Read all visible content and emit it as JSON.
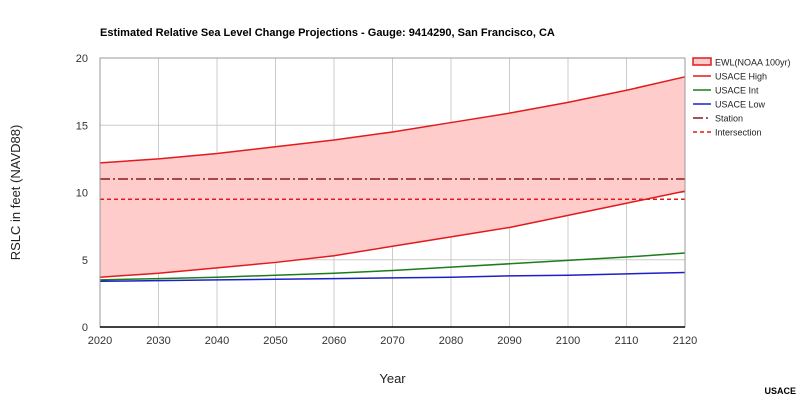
{
  "chart_data": {
    "type": "line",
    "title": "Estimated Relative Sea Level Change Projections - Gauge: 9414290, San Francisco, CA",
    "xlabel": "Year",
    "ylabel": "RSLC in feet (NAVD88)",
    "xlim": [
      2020,
      2120
    ],
    "ylim": [
      0,
      20
    ],
    "x_ticks": [
      "2020",
      "2030",
      "2040",
      "2050",
      "2060",
      "2070",
      "2080",
      "2090",
      "2100",
      "2110",
      "2120"
    ],
    "y_ticks": [
      "0",
      "5",
      "10",
      "15",
      "20"
    ],
    "grid": true,
    "legend_position": "right",
    "x": [
      2020,
      2030,
      2040,
      2050,
      2060,
      2070,
      2080,
      2090,
      2100,
      2110,
      2120
    ],
    "band": {
      "name": "EWL(NOAA 100yr)",
      "color": "#ffcccc",
      "edge_color": "#e31a1c",
      "lower": [
        3.7,
        4.0,
        4.4,
        4.8,
        5.3,
        6.0,
        6.7,
        7.4,
        8.3,
        9.2,
        10.1
      ],
      "upper": [
        12.2,
        12.5,
        12.9,
        13.4,
        13.9,
        14.5,
        15.2,
        15.9,
        16.7,
        17.6,
        18.6
      ]
    },
    "series": [
      {
        "name": "USACE High",
        "color": "#e31a1c",
        "style": "solid",
        "values": [
          3.7,
          4.0,
          4.4,
          4.8,
          5.3,
          6.0,
          6.7,
          7.4,
          8.3,
          9.2,
          10.1
        ]
      },
      {
        "name": "USACE Int",
        "color": "#1b7d1b",
        "style": "solid",
        "values": [
          3.5,
          3.6,
          3.7,
          3.85,
          4.0,
          4.2,
          4.45,
          4.7,
          4.95,
          5.2,
          5.5
        ]
      },
      {
        "name": "USACE Low",
        "color": "#1f1fc8",
        "style": "solid",
        "values": [
          3.4,
          3.45,
          3.5,
          3.55,
          3.6,
          3.65,
          3.7,
          3.8,
          3.85,
          3.95,
          4.05
        ]
      },
      {
        "name": "Station",
        "color": "#8b1a1a",
        "style": "dashdot",
        "values": [
          11,
          11,
          11,
          11,
          11,
          11,
          11,
          11,
          11,
          11,
          11
        ]
      },
      {
        "name": "Intersection",
        "color": "#e31a1c",
        "style": "dotted",
        "values": [
          9.5,
          9.5,
          9.5,
          9.5,
          9.5,
          9.5,
          9.5,
          9.5,
          9.5,
          9.5,
          9.5
        ]
      }
    ],
    "footer": "USACE"
  }
}
